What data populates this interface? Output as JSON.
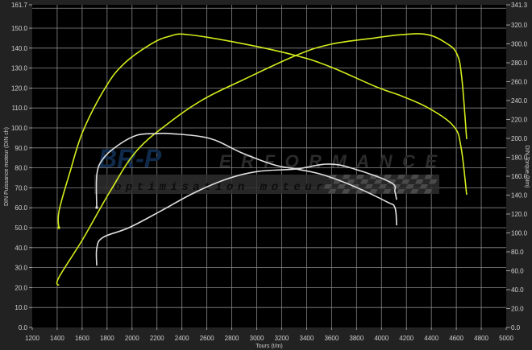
{
  "chart_data": {
    "type": "line",
    "title": "",
    "xlabel": "Tours (t/m)",
    "ylabel_left": "DIN Puissance moteur (DIN ch)",
    "ylabel_right": "DIN Torque (Nm)",
    "xlim": [
      1200,
      5000
    ],
    "ylim_left": [
      0,
      161.7
    ],
    "ylim_right": [
      0,
      341.3
    ],
    "x_ticks": [
      1200,
      1400,
      1600,
      1800,
      2000,
      2200,
      2400,
      2600,
      2800,
      3000,
      3200,
      3400,
      3600,
      3800,
      4000,
      4200,
      4400,
      4600,
      4800,
      5000
    ],
    "y_left_ticks": [
      "0.0",
      "10.0",
      "20.0",
      "30.0",
      "40.0",
      "50.0",
      "60.0",
      "70.0",
      "80.0",
      "90.0",
      "100.0",
      "110.0",
      "120.0",
      "130.0",
      "140.0",
      "150.0",
      "161.7"
    ],
    "y_right_ticks": [
      "0.0",
      "20.0",
      "40.0",
      "60.0",
      "80.0",
      "100.0",
      "120.0",
      "140.0",
      "160.0",
      "180.0",
      "200.0",
      "220.0",
      "240.0",
      "260.0",
      "280.0",
      "300.0",
      "320.0",
      "341.3"
    ],
    "grid": true,
    "background": "#000000",
    "series": [
      {
        "axis": "right",
        "color": "#d4ec1c",
        "points": [
          [
            1413,
            105.5
          ],
          [
            1415,
            123.4
          ],
          [
            1504,
            165
          ],
          [
            1607,
            207.7
          ],
          [
            1782,
            252.8
          ],
          [
            1930,
            278.3
          ],
          [
            2150,
            299.6
          ],
          [
            2299,
            308
          ],
          [
            2447,
            309.8
          ],
          [
            2880,
            300.4
          ],
          [
            3313,
            287.7
          ],
          [
            3591,
            275.7
          ],
          [
            3959,
            254.5
          ],
          [
            4172,
            244.3
          ],
          [
            4385,
            231.5
          ],
          [
            4579,
            212.8
          ],
          [
            4638,
            190.6
          ],
          [
            4683,
            140.4
          ]
        ]
      },
      {
        "axis": "left",
        "color": "#d4ec1c",
        "points": [
          [
            1413,
            21
          ],
          [
            1413,
            25
          ],
          [
            1607,
            44.4
          ],
          [
            1827,
            68.5
          ],
          [
            2040,
            88.7
          ],
          [
            2318,
            103.6
          ],
          [
            2577,
            114.5
          ],
          [
            2880,
            123.8
          ],
          [
            3313,
            136.3
          ],
          [
            3591,
            141.9
          ],
          [
            3959,
            145.2
          ],
          [
            4172,
            146.8
          ],
          [
            4366,
            146.8
          ],
          [
            4514,
            142.7
          ],
          [
            4605,
            137.1
          ],
          [
            4644,
            125
          ],
          [
            4683,
            94.4
          ]
        ]
      },
      {
        "axis": "right",
        "color": "#e0e0e0",
        "points": [
          [
            1717,
            126.8
          ],
          [
            1718,
            161.7
          ],
          [
            1769,
            178.7
          ],
          [
            1891,
            193
          ],
          [
            2040,
            203.4
          ],
          [
            2189,
            205
          ],
          [
            2318,
            205
          ],
          [
            2622,
            200
          ],
          [
            2880,
            184.7
          ],
          [
            3139,
            172
          ],
          [
            3313,
            167.7
          ],
          [
            3526,
            161.7
          ],
          [
            3785,
            149
          ],
          [
            4044,
            132.8
          ],
          [
            4108,
            126.8
          ],
          [
            4121,
            108
          ]
        ]
      },
      {
        "axis": "left",
        "color": "#e0e0e0",
        "points": [
          [
            1717,
            31
          ],
          [
            1718,
            40
          ],
          [
            1769,
            45.2
          ],
          [
            1975,
            50
          ],
          [
            2234,
            58.5
          ],
          [
            2492,
            67.3
          ],
          [
            2751,
            74.2
          ],
          [
            3010,
            78.2
          ],
          [
            3313,
            79.4
          ],
          [
            3572,
            81.9
          ],
          [
            3785,
            79.4
          ],
          [
            4076,
            72.6
          ],
          [
            4108,
            68
          ],
          [
            4121,
            64
          ]
        ]
      }
    ]
  },
  "logo": {
    "brand_main": "BR-P",
    "brand_rest": "ERFORMANCE",
    "tagline": "optimisation moteur",
    "brand_color": "#0f2a4a"
  }
}
